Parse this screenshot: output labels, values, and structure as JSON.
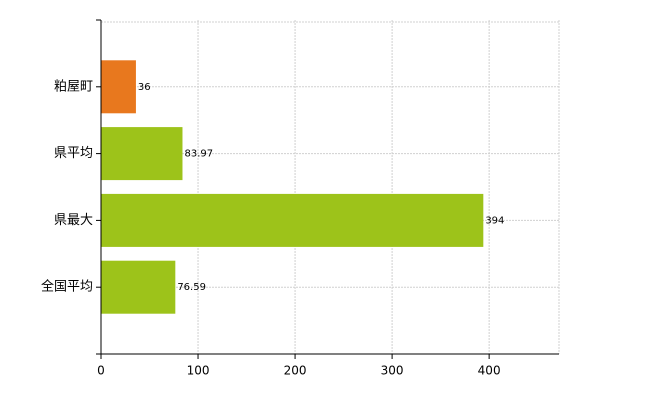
{
  "chart_data": {
    "type": "bar",
    "orientation": "horizontal",
    "categories": [
      "粕屋町",
      "県平均",
      "県最大",
      "全国平均"
    ],
    "values": [
      36,
      83.97,
      394,
      76.59
    ],
    "colors": [
      "#e8781e",
      "#9dc31a",
      "#9dc31a",
      "#9dc31a"
    ],
    "xlim": [
      0,
      472
    ],
    "xticks": [
      0,
      100,
      200,
      300,
      400
    ],
    "grid": true
  }
}
